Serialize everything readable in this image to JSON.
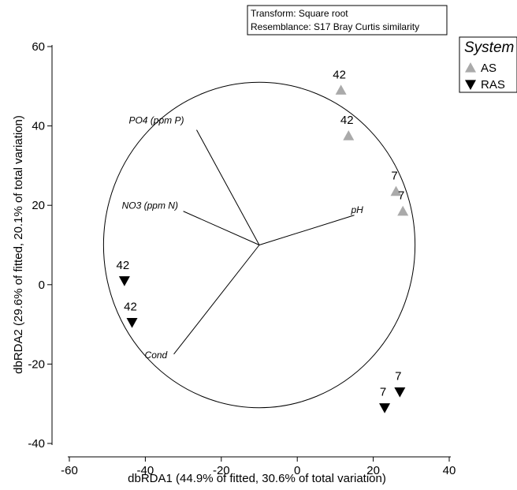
{
  "chart_data": {
    "type": "scatter",
    "title": "",
    "xlabel": "dbRDA1 (44.9% of fitted, 30.6% of total variation)",
    "ylabel": "dbRDA2 (29.6% of fitted, 20.1% of total variation)",
    "xlim": [
      -62,
      40
    ],
    "ylim": [
      -41,
      61
    ],
    "x_ticks": [
      -60,
      -40,
      -20,
      0,
      20,
      40
    ],
    "y_ticks": [
      -40,
      -20,
      0,
      20,
      40,
      60
    ],
    "x_tick_labels": [
      "-60",
      "-40",
      "-20",
      "0",
      "20",
      "40"
    ],
    "y_tick_labels": [
      "-40",
      "-20",
      "0",
      "20",
      "40",
      "60"
    ],
    "grid": false,
    "info_box": [
      "Transform: Square root",
      "Resemblance: S17 Bray Curtis similarity"
    ],
    "legend": {
      "title": "System",
      "placement": "top-right",
      "entries": [
        {
          "label": "AS",
          "marker": "triangle-up",
          "color": "#aaaaaa"
        },
        {
          "label": "RAS",
          "marker": "triangle-down",
          "color": "#000000"
        }
      ]
    },
    "series": [
      {
        "name": "AS",
        "marker": "triangle-up",
        "color": "#aaaaaa",
        "points": [
          {
            "x": 11.5,
            "y": 49,
            "label": "42"
          },
          {
            "x": 13.5,
            "y": 37.5,
            "label": "42"
          },
          {
            "x": 26,
            "y": 23.5,
            "label": "7"
          },
          {
            "x": 27.8,
            "y": 18.5,
            "label": "7"
          }
        ]
      },
      {
        "name": "RAS",
        "marker": "triangle-down",
        "color": "#000000",
        "points": [
          {
            "x": -45.5,
            "y": 1,
            "label": "42"
          },
          {
            "x": -43.5,
            "y": -9.5,
            "label": "42"
          },
          {
            "x": 27,
            "y": -27,
            "label": "7"
          },
          {
            "x": 23,
            "y": -31,
            "label": "7"
          }
        ]
      }
    ],
    "circle": {
      "cx": -10,
      "cy": 10,
      "r": 41
    },
    "vectors": [
      {
        "label": "PO4 (ppm P)",
        "x": -26.5,
        "y": 39
      },
      {
        "label": "NO3 (ppm N)",
        "x": -30,
        "y": 18.5
      },
      {
        "label": "pH",
        "x": 15,
        "y": 17.5
      },
      {
        "label": "Cond",
        "x": -32.5,
        "y": -17.5
      }
    ]
  }
}
